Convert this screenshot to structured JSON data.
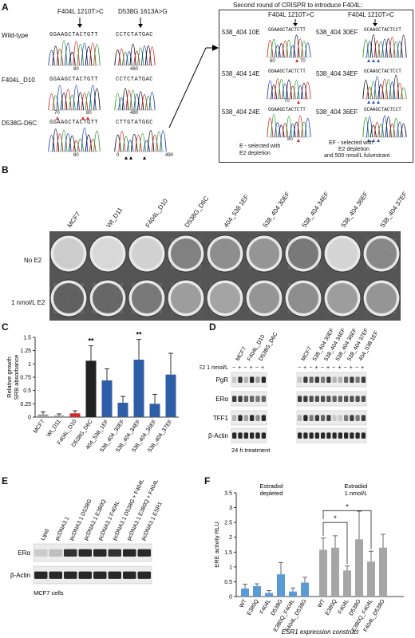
{
  "panels": {
    "A": "A",
    "B": "B",
    "C": "C",
    "D": "D",
    "E": "E",
    "F": "F"
  },
  "panelA": {
    "mut1": "F404L 1210T>C",
    "mut2": "D538G 1613A>G",
    "rows": [
      {
        "label": "Wild-type",
        "seq1": "GGAAGCTACTGTT",
        "seq2": "CCTCTATGAC",
        "tick1": "80",
        "tick2": "480"
      },
      {
        "label": "F404L_D10",
        "seq1": "GGAAGCTACTGTT",
        "seq2": "CCTCTATGAC",
        "tick1a": "70",
        "tick1b": "80",
        "tick2": "480"
      },
      {
        "label": "D538G-D6C",
        "seq1": "GGAAGCTACTGTT",
        "seq2": "CTTGTATGGC",
        "tick1": "80",
        "tick2a": "0",
        "tick2b": "490"
      }
    ],
    "right_title": "Second round of CRISPR to introduce F404L:",
    "right_mut": "F404L 1210T>C",
    "clones": [
      {
        "label": "538_404 10E",
        "seq": "GGAAGCTACTCTT",
        "ticks": [
          "60",
          "70"
        ]
      },
      {
        "label": "538_404 30EF",
        "seq": "GCAAGCTACTCCT",
        "ticks": []
      },
      {
        "label": "538_404 14E",
        "seq": "GGAAGCTACTCTT",
        "ticks": [
          "70"
        ]
      },
      {
        "label": "538_404 34EF",
        "seq": "GCAAGCTACTCCT",
        "ticks": []
      },
      {
        "label": "538_404 24E",
        "seq": "GGAAGCTACTCTT",
        "ticks": [
          "80"
        ]
      },
      {
        "label": "538_404 36EF",
        "seq": "GCAAGCTACTCCT",
        "ticks": []
      }
    ],
    "legend_e": [
      "E - selected with",
      "E2 depletion"
    ],
    "legend_ef": [
      "EF - selected with",
      "E2 depletion",
      "and 500 nmol/L fulvestrant"
    ]
  },
  "panelB": {
    "cols": [
      "MCF7",
      "Wt_D11",
      "F404L_D10",
      "D538G_D6C",
      "404_538 1EF",
      "538_404 30EF",
      "538_404 34EF",
      "538_404 36EF",
      "538_404 37EF"
    ],
    "row_labels": [
      "No E2",
      "1 nmol/L E2"
    ]
  },
  "chart_data": {
    "type": "bar",
    "categories": [
      "MCF7",
      "Wt_D11",
      "F404L_D10",
      "D538G_D6C",
      "404_538_1EF",
      "538_404_30EF",
      "538_404_34EF",
      "538_404_36EF",
      "538_404_37EF"
    ],
    "values": [
      0.05,
      0.03,
      0.07,
      1.06,
      0.69,
      0.27,
      1.08,
      0.25,
      0.8
    ],
    "errors": [
      0.05,
      0.03,
      0.05,
      0.28,
      0.22,
      0.12,
      0.38,
      0.18,
      0.4
    ],
    "colors": [
      "#9e9e9e",
      "#9e9e9e",
      "#d62728",
      "#222222",
      "#2f5ea8",
      "#2f5ea8",
      "#2f5ea8",
      "#2f5ea8",
      "#2f5ea8"
    ],
    "ylabel_lines": [
      "Relative growth",
      "SRB absorbance"
    ],
    "yticks": [
      "0",
      "0.25",
      "0.5",
      "0.75",
      "1",
      "1.25",
      "1.5"
    ],
    "ylim": [
      0,
      1.5
    ],
    "sig": [
      {
        "index": 3,
        "text": "**"
      },
      {
        "index": 6,
        "text": "**"
      }
    ]
  },
  "panelD": {
    "cols_left": [
      "MCF7",
      "F404L_D10",
      "D538G_D6C"
    ],
    "cols_right": [
      "MCF7",
      "538_404 30EF",
      "538_404 34EF",
      "538_404 36EF",
      "538_404 37EF",
      "404_538 1EF"
    ],
    "e2_label": "E2 1 nmol/L",
    "minus": "−",
    "plus": "+",
    "bands": [
      "PgR",
      "ERα",
      "TFF1",
      "β-Actin"
    ],
    "footer": "24 h treatment"
  },
  "panelE": {
    "cols": [
      "Lipid",
      "pcDNA3.1",
      "pcDNA3.1 D538G",
      "pcDNA3.1 E380Q",
      "pcDNA3.1 F404L",
      "pcDNA3.1 D538G + F404L",
      "pcDNA3.1 E380Q + F404L",
      "pcDNA3.1 ESR1"
    ],
    "bands": [
      "ERα",
      "β-Actin"
    ],
    "footer": "MCF7 cells"
  },
  "panelF": {
    "group_left": [
      "Estradiol",
      "depleted"
    ],
    "group_right": [
      "Estradiol",
      "1 nmol/L"
    ],
    "ylabel": "ERE activity RLU",
    "xlabel": "ESR1 expression construct",
    "yticks": [
      "0",
      "0.5",
      "1",
      "1.5",
      "2",
      "2.5",
      "3",
      "3.5"
    ],
    "ylim": [
      0,
      3.5
    ],
    "categories": [
      "WT",
      "E380Q",
      "F404L",
      "D538G",
      "E380Q_F404L",
      "F404L_D538G"
    ],
    "depleted_values": [
      0.27,
      0.35,
      0.12,
      0.75,
      0.17,
      0.47
    ],
    "depleted_errors": [
      0.15,
      0.08,
      0.08,
      0.4,
      0.12,
      0.18
    ],
    "estradiol_values": [
      1.58,
      1.65,
      0.88,
      1.93,
      1.18,
      1.65
    ],
    "estradiol_errors": [
      0.4,
      0.4,
      0.15,
      0.95,
      0.35,
      0.45
    ],
    "color_depleted": "#5b9bd5",
    "color_estradiol": "#a6a6a6",
    "star": "*"
  }
}
